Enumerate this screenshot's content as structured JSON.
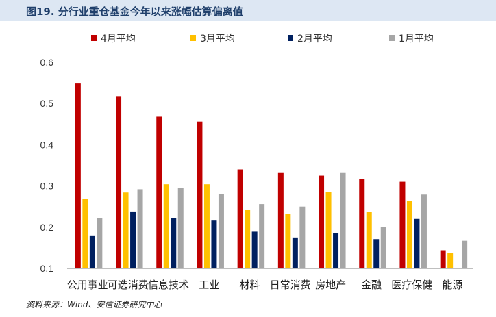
{
  "header": {
    "title": "图19. 分行业重仓基金今年以来涨幅估算偏离值"
  },
  "footer": {
    "source": "资料来源：Wind、安信证券研究中心"
  },
  "chart_data": {
    "type": "bar",
    "title": "",
    "xlabel": "",
    "ylabel": "",
    "ylim": [
      0.1,
      0.6
    ],
    "yticks": [
      0.1,
      0.2,
      0.3,
      0.4,
      0.5,
      0.6
    ],
    "grid": false,
    "legend_position": "top",
    "categories": [
      "公用事业",
      "可选消费",
      "信息技术",
      "工业",
      "材料",
      "日常消费",
      "房地产",
      "金融",
      "医疗保健",
      "能源"
    ],
    "series": [
      {
        "name": "4月平均",
        "color": "#c00000",
        "values": [
          0.55,
          0.518,
          0.468,
          0.456,
          0.34,
          0.333,
          0.325,
          0.317,
          0.31,
          0.144
        ]
      },
      {
        "name": "3月平均",
        "color": "#ffc000",
        "values": [
          0.268,
          0.284,
          0.304,
          0.304,
          0.242,
          0.232,
          0.285,
          0.237,
          0.263,
          0.137
        ]
      },
      {
        "name": "2月平均",
        "color": "#002060",
        "values": [
          0.18,
          0.238,
          0.222,
          0.216,
          0.189,
          0.175,
          0.186,
          0.171,
          0.22,
          null
        ]
      },
      {
        "name": "1月平均",
        "color": "#a6a6a6",
        "values": [
          0.222,
          0.292,
          0.296,
          0.281,
          0.256,
          0.25,
          0.333,
          0.2,
          0.279,
          0.167
        ]
      }
    ]
  }
}
